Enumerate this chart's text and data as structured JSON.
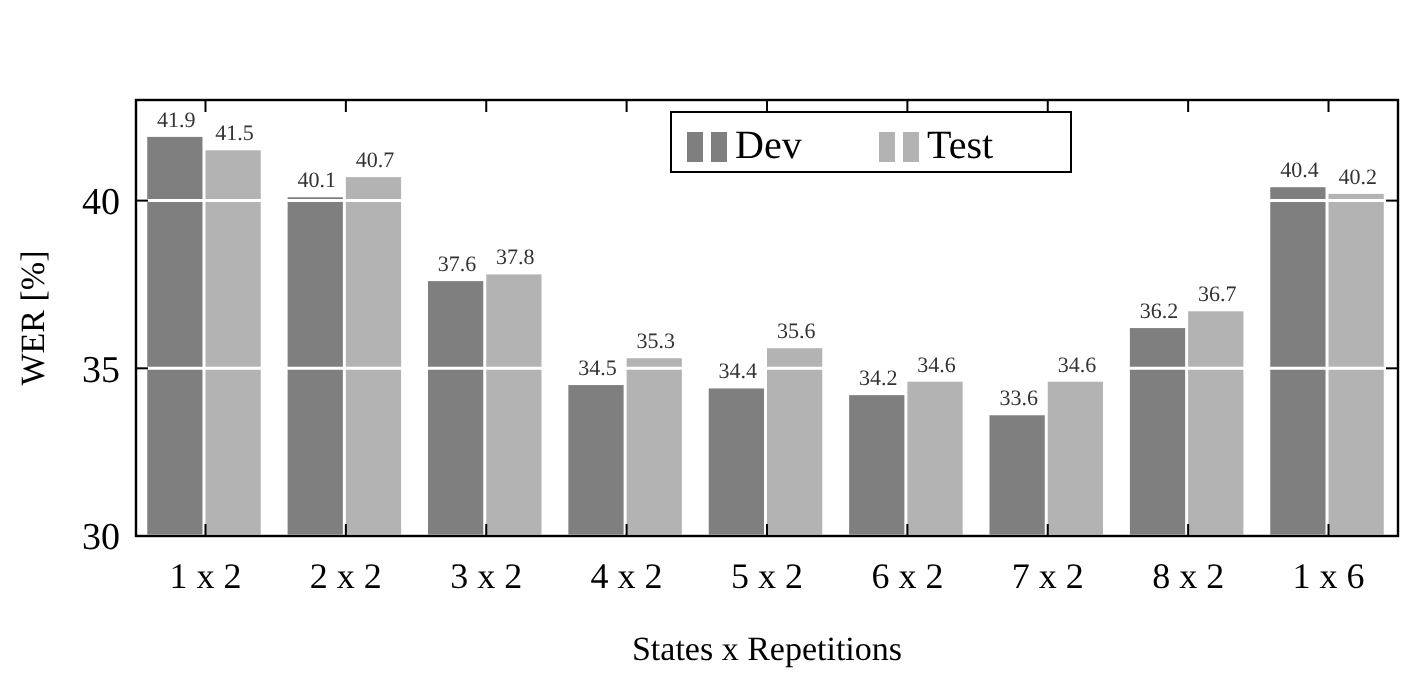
{
  "chart_data": {
    "type": "bar",
    "xlabel": "States x Repetitions",
    "ylabel": "WER [%]",
    "categories": [
      "1 x 2",
      "2 x 2",
      "3 x 2",
      "4 x 2",
      "5 x 2",
      "6 x 2",
      "7 x 2",
      "8 x 2",
      "1 x 6"
    ],
    "series": [
      {
        "name": "Dev",
        "color": "#7f7f7f",
        "values": [
          41.9,
          40.1,
          37.6,
          34.5,
          34.4,
          34.2,
          33.6,
          36.2,
          40.4
        ]
      },
      {
        "name": "Test",
        "color": "#b3b3b3",
        "values": [
          41.5,
          40.7,
          37.8,
          35.3,
          35.6,
          34.6,
          34.6,
          36.7,
          40.2
        ]
      }
    ],
    "ylim": [
      30,
      43
    ],
    "yticks": [
      30,
      35,
      40
    ],
    "grid": "y",
    "legend": "top",
    "data_labels": true
  }
}
